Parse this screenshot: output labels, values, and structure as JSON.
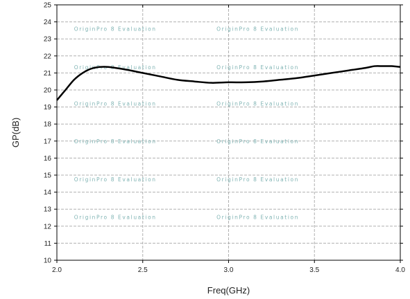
{
  "chart_data": {
    "type": "line",
    "title": "",
    "xlabel": "Freq(GHz)",
    "ylabel": "GP(dB)",
    "xlim": [
      2.0,
      4.0
    ],
    "ylim": [
      10,
      25
    ],
    "x_ticks": [
      "2.0",
      "2.5",
      "3.0",
      "3.5",
      "4.0"
    ],
    "y_ticks": [
      "10",
      "11",
      "12",
      "13",
      "14",
      "15",
      "16",
      "17",
      "18",
      "19",
      "20",
      "21",
      "22",
      "23",
      "24",
      "25"
    ],
    "grid": true,
    "line_color": "#000000",
    "grid_color": "#b0b0b0",
    "watermark_text": "OriginPro 8 Evaluation",
    "series": [
      {
        "x": [
          2.0,
          2.05,
          2.1,
          2.15,
          2.2,
          2.25,
          2.3,
          2.4,
          2.5,
          2.6,
          2.7,
          2.8,
          2.9,
          3.0,
          3.1,
          3.2,
          3.3,
          3.4,
          3.5,
          3.6,
          3.7,
          3.8,
          3.85,
          3.9,
          3.95,
          4.0
        ],
        "y": [
          19.4,
          20.0,
          20.6,
          21.0,
          21.25,
          21.35,
          21.35,
          21.2,
          21.0,
          20.8,
          20.6,
          20.5,
          20.42,
          20.45,
          20.45,
          20.5,
          20.6,
          20.7,
          20.85,
          21.0,
          21.15,
          21.3,
          21.4,
          21.4,
          21.4,
          21.35
        ]
      }
    ]
  }
}
